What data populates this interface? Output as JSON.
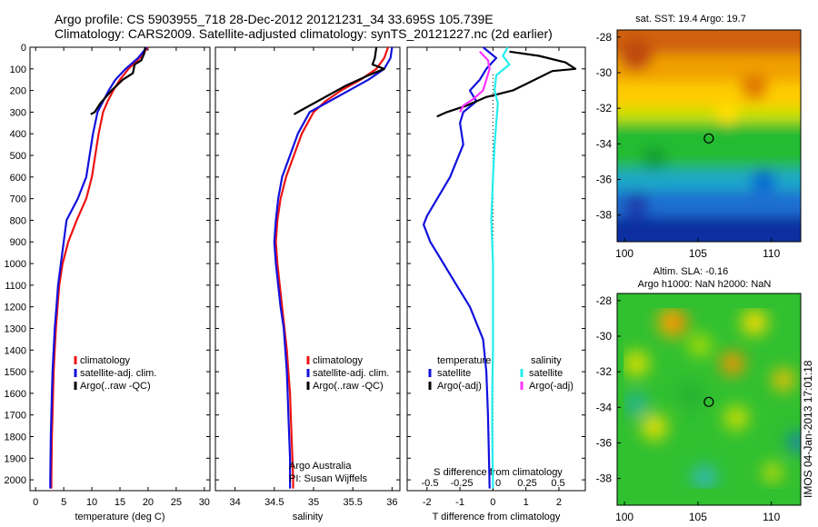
{
  "header": {
    "line1": "Argo profile: CS 5903955_718 28-Dec-2012 20121231_34 33.695S 105.739E",
    "line2": "Climatology: CARS2009. Satellite-adjusted climatology: synTS_20121227.nc (2d earlier)"
  },
  "colors": {
    "climatology": "#ee1111",
    "satellite": "#1111dd",
    "argo": "#000000",
    "sal_satellite": "#22eeee",
    "sal_argo": "#ff33ff"
  },
  "credit": "IMOS 04-Jan-2013 17:01:18",
  "chart_data": [
    {
      "type": "line",
      "id": "temperature",
      "xlabel": "temperature (deg C)",
      "ylabel": "",
      "xlim": [
        -1,
        31
      ],
      "ylim": [
        2050,
        0
      ],
      "xticks": [
        "0",
        "5",
        "10",
        "15",
        "20",
        "25",
        "30"
      ],
      "yticks": [
        "0",
        "100",
        "200",
        "300",
        "400",
        "500",
        "600",
        "700",
        "800",
        "900",
        "1000",
        "1100",
        "1200",
        "1300",
        "1400",
        "1500",
        "1600",
        "1700",
        "1800",
        "1900",
        "2000"
      ],
      "legend": [
        "climatology",
        "satellite-adj. clim.",
        "Argo(..raw -QC)"
      ],
      "series": [
        {
          "name": "climatology",
          "color": "#ee1111",
          "points": [
            [
              20,
              0
            ],
            [
              18.5,
              50
            ],
            [
              16.5,
              100
            ],
            [
              15,
              150
            ],
            [
              13.8,
              200
            ],
            [
              12.8,
              250
            ],
            [
              12,
              300
            ],
            [
              11.2,
              400
            ],
            [
              10.6,
              500
            ],
            [
              10,
              600
            ],
            [
              9,
              700
            ],
            [
              7.3,
              800
            ],
            [
              5.8,
              900
            ],
            [
              4.8,
              1000
            ],
            [
              4.2,
              1100
            ],
            [
              3.9,
              1200
            ],
            [
              3.6,
              1300
            ],
            [
              3.4,
              1400
            ],
            [
              3.2,
              1500
            ],
            [
              3.1,
              1600
            ],
            [
              3,
              1700
            ],
            [
              2.9,
              1800
            ],
            [
              2.85,
              1900
            ],
            [
              2.8,
              2000
            ],
            [
              2.8,
              2040
            ]
          ]
        },
        {
          "name": "satellite-adj. clim.",
          "color": "#1111dd",
          "points": [
            [
              19.8,
              0
            ],
            [
              18.2,
              50
            ],
            [
              16,
              100
            ],
            [
              14.2,
              150
            ],
            [
              13,
              200
            ],
            [
              12,
              250
            ],
            [
              11,
              300
            ],
            [
              10.2,
              400
            ],
            [
              9.6,
              500
            ],
            [
              9,
              600
            ],
            [
              7.5,
              700
            ],
            [
              5.5,
              800
            ],
            [
              5,
              900
            ],
            [
              4.5,
              1000
            ],
            [
              4,
              1100
            ],
            [
              3.7,
              1200
            ],
            [
              3.4,
              1300
            ],
            [
              3.2,
              1400
            ],
            [
              3,
              1500
            ],
            [
              2.9,
              1600
            ],
            [
              2.8,
              1700
            ],
            [
              2.7,
              1800
            ],
            [
              2.65,
              1900
            ],
            [
              2.6,
              2000
            ],
            [
              2.6,
              2040
            ]
          ]
        },
        {
          "name": "Argo(..raw -QC)",
          "color": "#000000",
          "points": [
            [
              19.5,
              0
            ],
            [
              19.3,
              30
            ],
            [
              18.8,
              60
            ],
            [
              17.6,
              80
            ],
            [
              17.3,
              120
            ],
            [
              15.5,
              150
            ],
            [
              13.5,
              200
            ],
            [
              11.5,
              260
            ],
            [
              10.5,
              300
            ],
            [
              9.8,
              310
            ]
          ]
        }
      ]
    },
    {
      "type": "line",
      "id": "salinity",
      "xlabel": "salinity",
      "ylabel": "",
      "xlim": [
        33.75,
        36.1
      ],
      "ylim": [
        2050,
        0
      ],
      "xticks": [
        "34",
        "34.5",
        "35",
        "35.5",
        "36"
      ],
      "legend": [
        "climatology",
        "satellite-adj. clim.",
        "Argo(..raw -QC)"
      ],
      "annotations": [
        "Argo Australia",
        "PI: Susan Wijffels"
      ],
      "series": [
        {
          "name": "climatology",
          "color": "#ee1111",
          "points": [
            [
              35.95,
              0
            ],
            [
              35.9,
              50
            ],
            [
              35.8,
              100
            ],
            [
              35.6,
              150
            ],
            [
              35.35,
              200
            ],
            [
              35.15,
              250
            ],
            [
              35.0,
              300
            ],
            [
              34.85,
              400
            ],
            [
              34.75,
              500
            ],
            [
              34.65,
              600
            ],
            [
              34.58,
              700
            ],
            [
              34.54,
              800
            ],
            [
              34.52,
              900
            ],
            [
              34.54,
              1000
            ],
            [
              34.57,
              1100
            ],
            [
              34.6,
              1200
            ],
            [
              34.63,
              1300
            ],
            [
              34.66,
              1400
            ],
            [
              34.68,
              1500
            ],
            [
              34.7,
              1600
            ],
            [
              34.71,
              1700
            ],
            [
              34.72,
              1800
            ],
            [
              34.73,
              1900
            ],
            [
              34.74,
              2000
            ],
            [
              34.74,
              2040
            ]
          ]
        },
        {
          "name": "satellite-adj. clim.",
          "color": "#1111dd",
          "points": [
            [
              36.0,
              0
            ],
            [
              35.98,
              50
            ],
            [
              35.9,
              100
            ],
            [
              35.7,
              150
            ],
            [
              35.45,
              200
            ],
            [
              35.2,
              250
            ],
            [
              34.95,
              300
            ],
            [
              34.8,
              400
            ],
            [
              34.7,
              500
            ],
            [
              34.6,
              600
            ],
            [
              34.55,
              700
            ],
            [
              34.52,
              800
            ],
            [
              34.5,
              900
            ],
            [
              34.52,
              1000
            ],
            [
              34.55,
              1100
            ],
            [
              34.58,
              1200
            ],
            [
              34.62,
              1300
            ],
            [
              34.64,
              1400
            ],
            [
              34.66,
              1500
            ],
            [
              34.67,
              1600
            ],
            [
              34.68,
              1700
            ],
            [
              34.69,
              1800
            ],
            [
              34.7,
              1900
            ],
            [
              34.7,
              2000
            ],
            [
              34.7,
              2040
            ]
          ]
        },
        {
          "name": "Argo(..raw -QC)",
          "color": "#000000",
          "points": [
            [
              35.8,
              0
            ],
            [
              35.78,
              50
            ],
            [
              35.75,
              80
            ],
            [
              35.9,
              100
            ],
            [
              35.7,
              130
            ],
            [
              35.4,
              180
            ],
            [
              35.1,
              240
            ],
            [
              34.8,
              300
            ],
            [
              34.75,
              310
            ]
          ]
        }
      ]
    },
    {
      "type": "line",
      "id": "difference",
      "xlabel": "T difference from climatology",
      "xlabel_top": "S difference from climatology",
      "xlim": [
        -2.6,
        2.8
      ],
      "ylim": [
        2050,
        0
      ],
      "xticks": [
        "-2",
        "-1",
        "0",
        "1",
        "2"
      ],
      "xticks_top": [
        "-0.5",
        "-0.25",
        "0",
        "0.25",
        "0.5"
      ],
      "legend": [
        "temperature",
        "satellite",
        "Argo(-adj)",
        "salinity",
        "satellite",
        "Argo(-adj)"
      ],
      "series": [
        {
          "name": "satellite",
          "color": "#1111dd",
          "points": [
            [
              -0.3,
              0
            ],
            [
              0.1,
              50
            ],
            [
              -0.2,
              100
            ],
            [
              -0.4,
              150
            ],
            [
              -0.7,
              200
            ],
            [
              -0.5,
              250
            ],
            [
              -0.9,
              300
            ],
            [
              -1.0,
              350
            ],
            [
              -0.9,
              450
            ],
            [
              -1.3,
              600
            ],
            [
              -2.0,
              780
            ],
            [
              -2.1,
              820
            ],
            [
              -1.9,
              900
            ],
            [
              -1.5,
              1000
            ],
            [
              -1.1,
              1100
            ],
            [
              -0.7,
              1200
            ],
            [
              -0.3,
              1350
            ],
            [
              -0.2,
              1500
            ],
            [
              -0.15,
              1700
            ],
            [
              -0.12,
              1900
            ],
            [
              -0.1,
              2040
            ]
          ]
        },
        {
          "name": "Argo(-adj)",
          "color": "#000000",
          "points": [
            [
              0.5,
              20
            ],
            [
              1.4,
              40
            ],
            [
              2.2,
              70
            ],
            [
              2.5,
              100
            ],
            [
              1.8,
              110
            ],
            [
              1.0,
              170
            ],
            [
              0.6,
              200
            ],
            [
              -0.2,
              230
            ],
            [
              -0.8,
              270
            ],
            [
              -1.4,
              300
            ],
            [
              -1.7,
              320
            ]
          ]
        },
        {
          "name": "satellite",
          "color": "#22eeee",
          "points": [
            [
              0.45,
              0
            ],
            [
              0.3,
              40
            ],
            [
              0.5,
              80
            ],
            [
              0.1,
              130
            ],
            [
              0.05,
              200
            ],
            [
              0.15,
              260
            ],
            [
              0.1,
              350
            ],
            [
              0.05,
              450
            ],
            [
              0.0,
              600
            ],
            [
              -0.05,
              800
            ],
            [
              0.0,
              1000
            ],
            [
              0.0,
              1200
            ],
            [
              0.0,
              1400
            ],
            [
              -0.02,
              1600
            ],
            [
              -0.02,
              1800
            ],
            [
              0.0,
              2040
            ]
          ]
        },
        {
          "name": "Argo(-adj)",
          "color": "#ff33ff",
          "points": [
            [
              -0.4,
              20
            ],
            [
              -0.15,
              60
            ],
            [
              -0.1,
              100
            ],
            [
              -0.2,
              150
            ],
            [
              -0.3,
              200
            ],
            [
              -0.6,
              240
            ],
            [
              -0.9,
              270
            ],
            [
              -1.0,
              300
            ]
          ]
        }
      ]
    },
    {
      "type": "heatmap",
      "id": "sst_map",
      "title": "sat. SST: 19.4  Argo: 19.7",
      "xlim": [
        99.5,
        112
      ],
      "ylim": [
        -39.5,
        -27.6
      ],
      "xticks": [
        "100",
        "105",
        "110"
      ],
      "yticks": [
        "-28",
        "-30",
        "-32",
        "-34",
        "-36",
        "-38"
      ],
      "marker": [
        105.739,
        -33.695
      ]
    },
    {
      "type": "heatmap",
      "id": "sla_map",
      "title": "Altim. SLA: -0.16",
      "subtitle": "Argo h1000: NaN h2000: NaN",
      "xlim": [
        99.5,
        112
      ],
      "ylim": [
        -39.5,
        -27.6
      ],
      "xticks": [
        "100",
        "105",
        "110"
      ],
      "yticks": [
        "-28",
        "-30",
        "-32",
        "-34",
        "-36",
        "-38"
      ],
      "marker": [
        105.739,
        -33.695
      ]
    }
  ]
}
